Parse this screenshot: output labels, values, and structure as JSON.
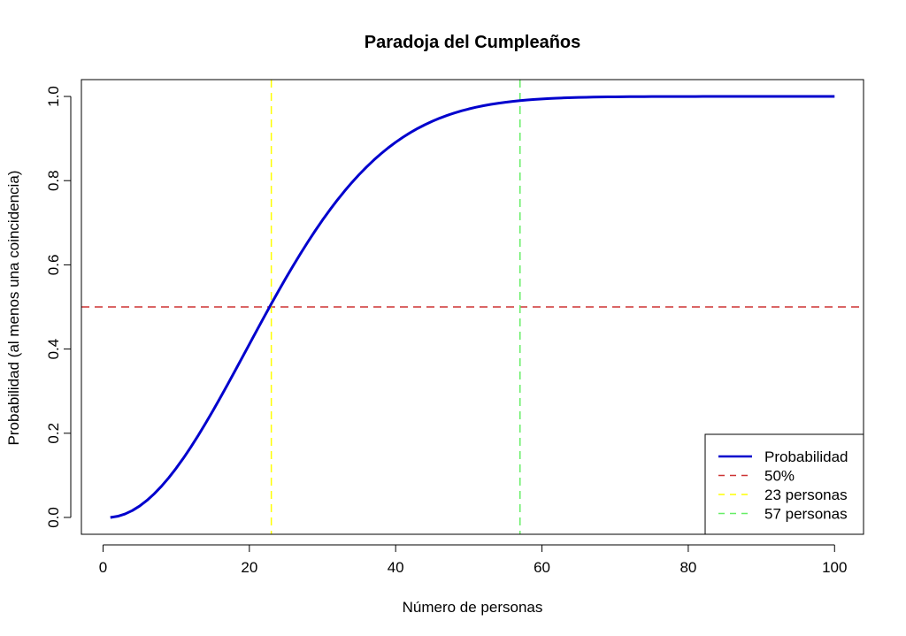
{
  "chart_data": {
    "type": "line",
    "title": "Paradoja del Cumpleaños",
    "xlabel": "Número de personas",
    "ylabel": "Probabilidad (al menos una coincidencia)",
    "xlim": [
      1,
      100
    ],
    "ylim": [
      0,
      1
    ],
    "x_ticks": [
      0,
      20,
      40,
      60,
      80,
      100
    ],
    "y_ticks": [
      0.0,
      0.2,
      0.4,
      0.6,
      0.8,
      1.0
    ],
    "x_tick_labels": [
      "0",
      "20",
      "40",
      "60",
      "80",
      "100"
    ],
    "y_tick_labels": [
      "0.0",
      "0.2",
      "0.4",
      "0.6",
      "0.8",
      "1.0"
    ],
    "grid": false,
    "legend_position": "bottom-right",
    "series": [
      {
        "name": "Probabilidad",
        "color": "#0000CD",
        "style": "solid",
        "x_range": [
          1,
          100
        ],
        "formula": "1 - prod_{i=0}^{n-1} (365 - i) / 365"
      }
    ],
    "reference_lines": [
      {
        "name": "50%",
        "orientation": "horizontal",
        "value": 0.5,
        "color": "#CD3333",
        "style": "dashed"
      },
      {
        "name": "23 personas",
        "orientation": "vertical",
        "value": 23,
        "color": "#FFFF00",
        "style": "dashed"
      },
      {
        "name": "57 personas",
        "orientation": "vertical",
        "value": 57,
        "color": "#66EE66",
        "style": "dashed"
      }
    ],
    "legend": [
      {
        "label": "Probabilidad",
        "color": "#0000CD",
        "style": "solid"
      },
      {
        "label": "50%",
        "color": "#CD3333",
        "style": "dashed"
      },
      {
        "label": "23 personas",
        "color": "#FFFF00",
        "style": "dashed"
      },
      {
        "label": "57 personas",
        "color": "#66EE66",
        "style": "dashed"
      }
    ]
  }
}
